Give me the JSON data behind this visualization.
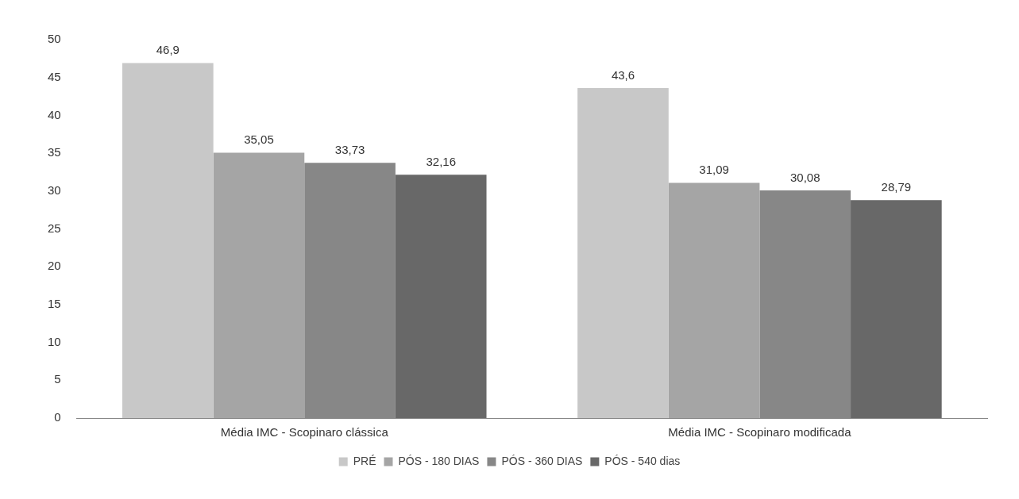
{
  "chart_data": {
    "type": "bar",
    "categories": [
      "Média IMC - Scopinaro clássica",
      "Média IMC - Scopinaro modificada"
    ],
    "series": [
      {
        "name": "PRÉ",
        "color": "#c8c8c8",
        "values": [
          46.9,
          43.6
        ],
        "value_labels": [
          "46,9",
          "43,6"
        ]
      },
      {
        "name": "PÓS - 180 DIAS",
        "color": "#a5a5a5",
        "values": [
          35.05,
          31.09
        ],
        "value_labels": [
          "35,05",
          "31,09"
        ]
      },
      {
        "name": "PÓS - 360 DIAS",
        "color": "#878787",
        "values": [
          33.73,
          30.08
        ],
        "value_labels": [
          "33,73",
          "30,08"
        ]
      },
      {
        "name": "PÓS - 540 dias",
        "color": "#686868",
        "values": [
          32.16,
          28.79
        ],
        "value_labels": [
          "32,16",
          "28,79"
        ]
      }
    ],
    "ylim": [
      0,
      50
    ],
    "yticks": [
      0,
      5,
      10,
      15,
      20,
      25,
      30,
      35,
      40,
      45,
      50
    ],
    "grid": false,
    "legend": "bottom"
  }
}
